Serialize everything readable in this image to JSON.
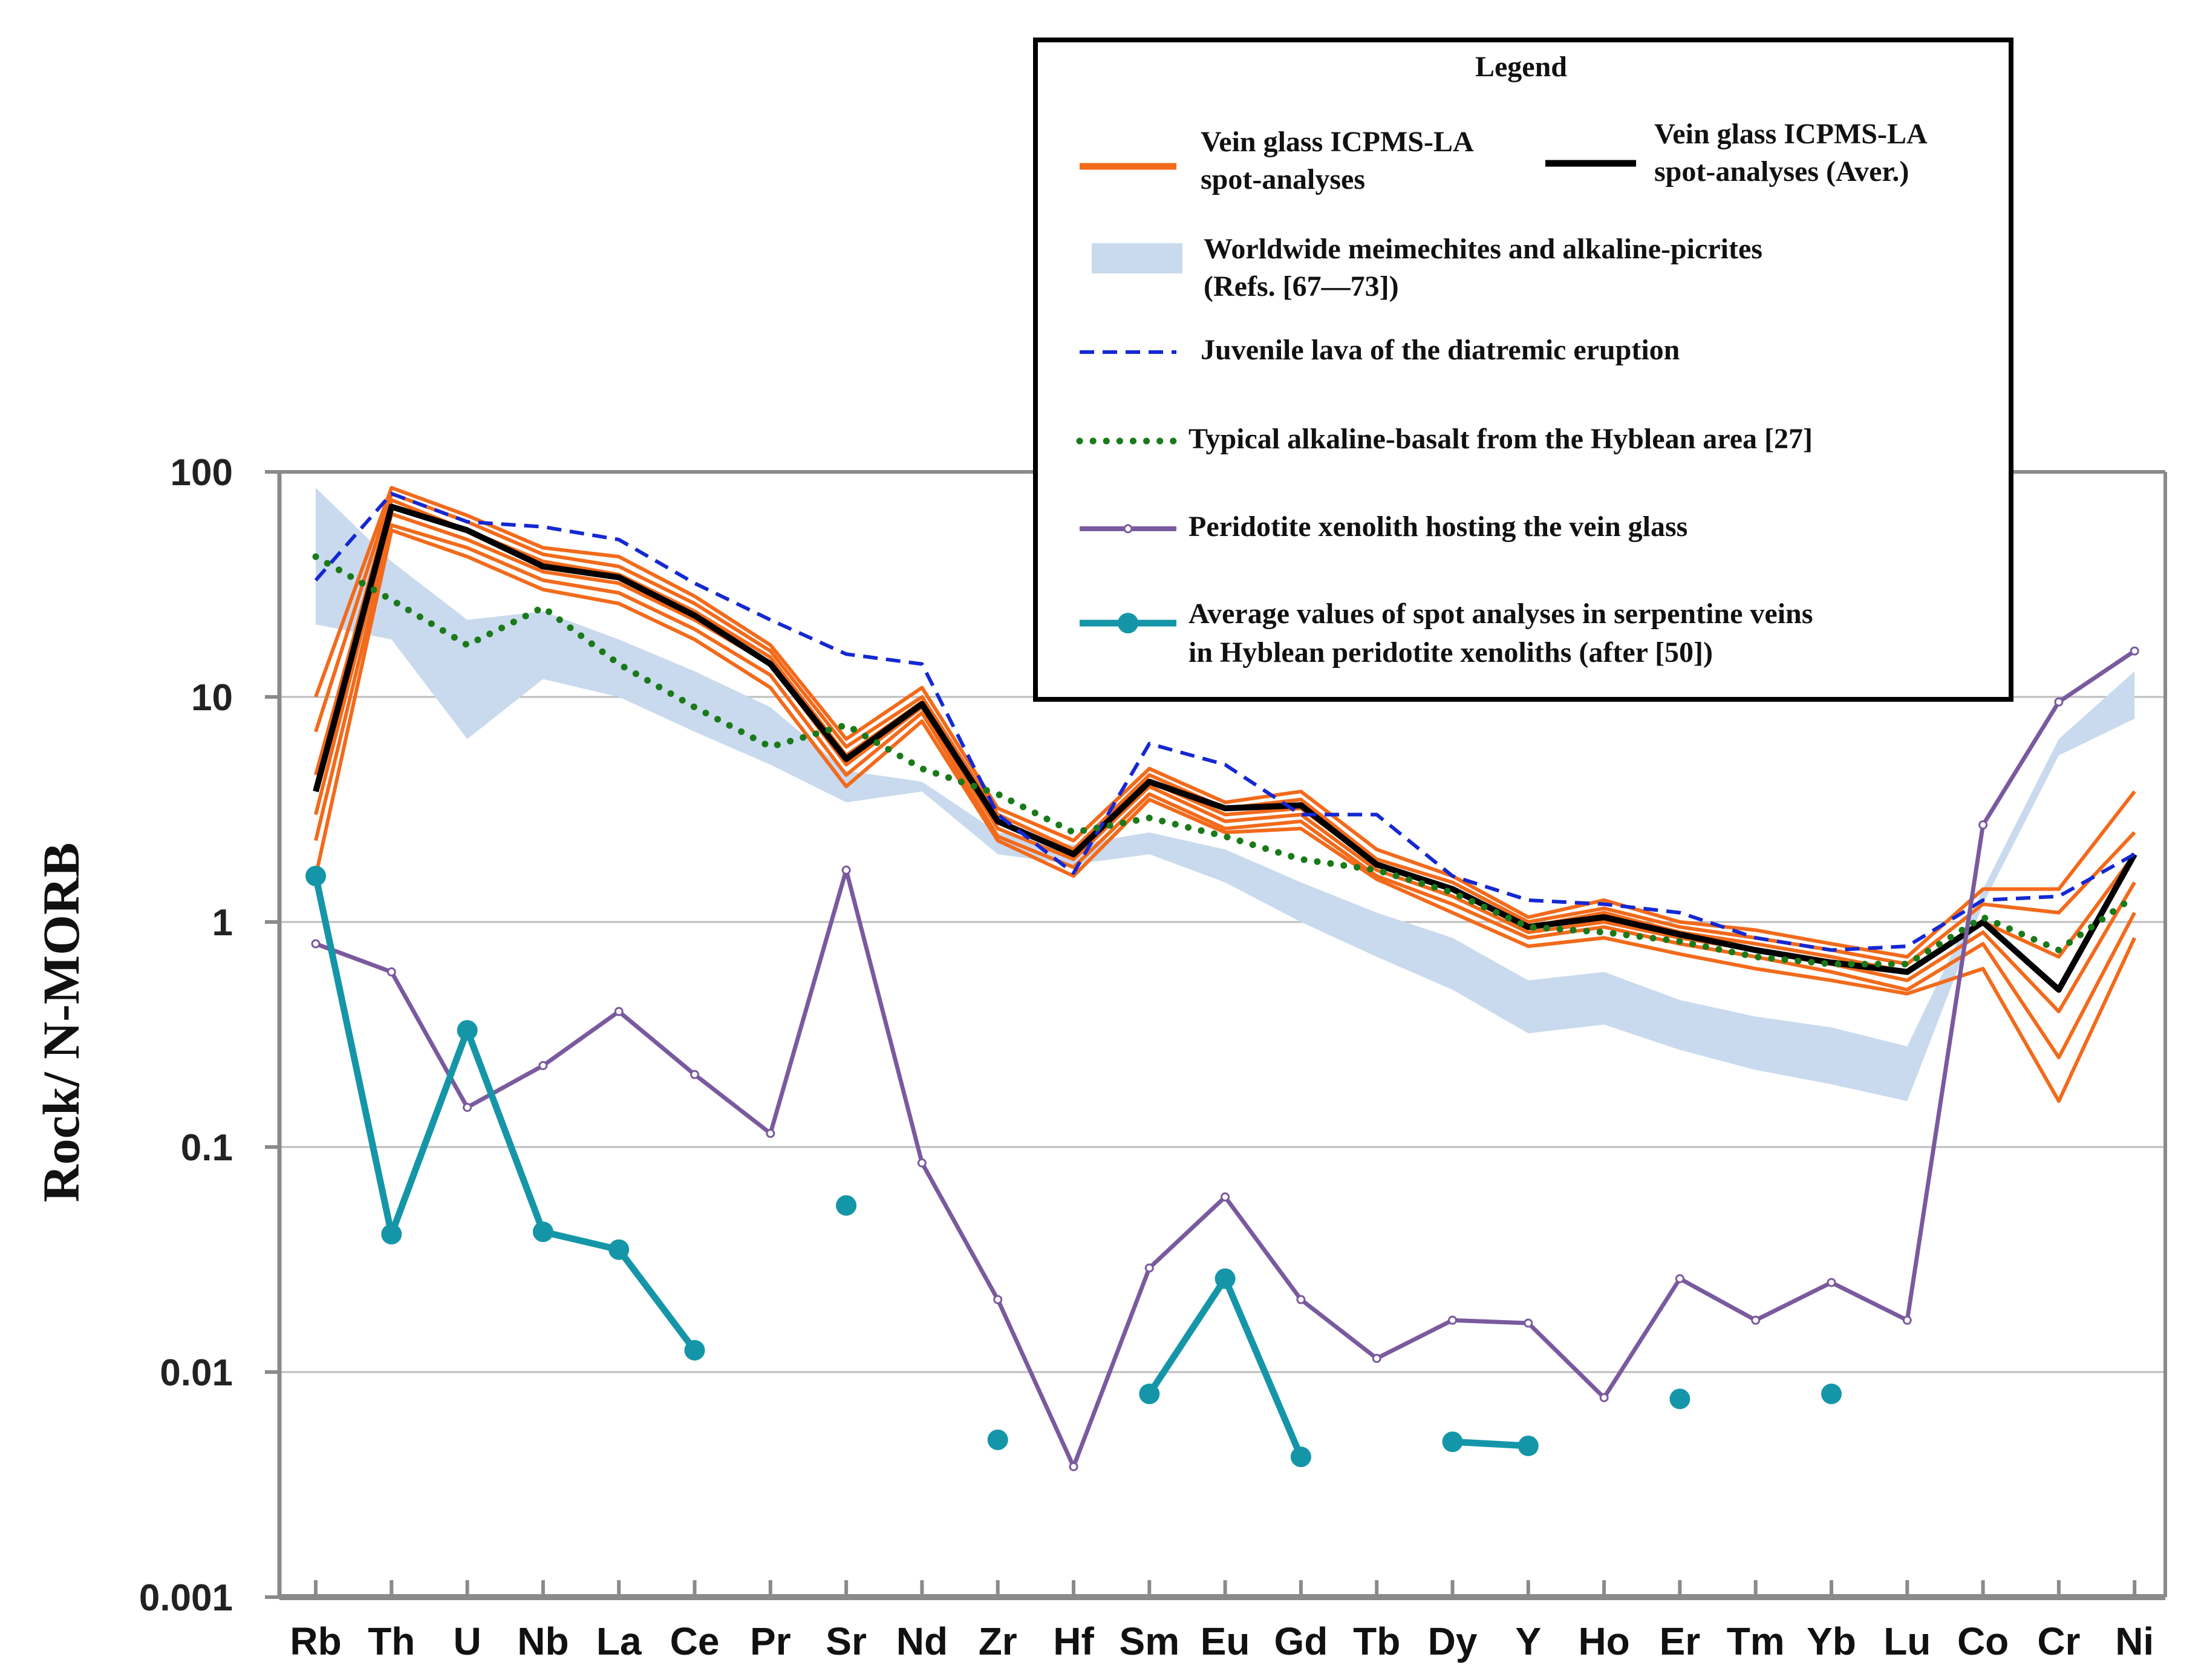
{
  "chart_data": {
    "type": "line",
    "yscale": "log",
    "ylabel": "Rock/ N-MORB",
    "xlabel": "",
    "ylim": [
      0.001,
      100
    ],
    "yticks": [
      "100",
      "10",
      "1",
      "0.1",
      "0.01",
      "0.001"
    ],
    "grid": true,
    "categories": [
      "Rb",
      "Th",
      "U",
      "Nb",
      "La",
      "Ce",
      "Pr",
      "Sr",
      "Nd",
      "Zr",
      "Hf",
      "Sm",
      "Eu",
      "Gd",
      "Tb",
      "Dy",
      "Y",
      "Ho",
      "Er",
      "Tm",
      "Yb",
      "Lu",
      "Co",
      "Cr",
      "Ni"
    ],
    "legend": {
      "title": "Legend",
      "placement": "top-right",
      "entries": [
        {
          "key": "spots",
          "lines": [
            "Vein glass ICPMS-LA",
            "spot-analyses"
          ]
        },
        {
          "key": "avg",
          "lines": [
            "Vein glass ICPMS-LA",
            "spot-analyses (Aver.)"
          ]
        },
        {
          "key": "band",
          "lines": [
            "Worldwide meimechites and alkaline-picrites",
            "(Refs. [67—73])"
          ]
        },
        {
          "key": "juvenile",
          "lines": [
            "Juvenile lava of the diatremic eruption"
          ]
        },
        {
          "key": "hyblean",
          "lines": [
            "Typical alkaline-basalt from the Hyblean area [27]"
          ]
        },
        {
          "key": "xenolith",
          "lines": [
            "Peridotite xenolith hosting the vein glass"
          ]
        },
        {
          "key": "serpentine",
          "lines": [
            "Average values of spot analyses in serpentine veins",
            "in Hyblean peridotite xenoliths (after [50])"
          ]
        }
      ]
    },
    "colors": {
      "spots": "#f26a1b",
      "avg": "#000000",
      "band": "#c9daee",
      "juvenile": "#1428d2",
      "hyblean": "#1a7a1a",
      "xenolith": "#7a5a9e",
      "serpentine": "#1596a8",
      "grid": "#bdbdbd",
      "frame": "#8a8a8a"
    },
    "band": {
      "name": "Worldwide meimechites and alkaline-picrites",
      "upper": [
        85,
        40,
        22,
        24,
        18,
        13,
        9,
        4.7,
        4.2,
        2.5,
        2.2,
        2.5,
        2.1,
        1.5,
        1.1,
        0.85,
        0.55,
        0.6,
        0.45,
        0.38,
        0.34,
        0.28,
        1.4,
        6.5,
        13
      ],
      "lower": [
        21,
        18,
        6.5,
        12,
        10,
        7,
        5,
        3.4,
        3.8,
        2.0,
        1.8,
        2.0,
        1.5,
        1.0,
        0.7,
        0.5,
        0.32,
        0.35,
        0.27,
        0.22,
        0.19,
        0.16,
        1.2,
        5.5,
        8
      ]
    },
    "series": [
      {
        "name": "Vein glass ICPMS-LA spot-analyses",
        "key": "spots",
        "values": [
          10,
          85,
          64,
          46,
          42,
          28,
          17,
          6.5,
          11,
          3.2,
          2.3,
          4.8,
          3.4,
          3.8,
          2.1,
          1.6,
          1.05,
          1.25,
          1.0,
          0.92,
          0.8,
          0.7,
          1.4,
          1.4,
          3.8
        ]
      },
      {
        "name": "Vein glass ICPMS-LA spot-analyses",
        "key": "spots",
        "values": [
          7,
          80,
          60,
          43,
          38,
          26,
          16,
          6.0,
          10,
          3.0,
          2.1,
          4.5,
          3.2,
          3.5,
          1.9,
          1.5,
          1.0,
          1.15,
          0.95,
          0.85,
          0.75,
          0.65,
          1.2,
          1.1,
          2.5
        ]
      },
      {
        "name": "Vein glass ICPMS-LA spot-analyses",
        "key": "spots",
        "values": [
          4.5,
          75,
          55,
          40,
          35,
          24,
          15,
          5.5,
          9.5,
          2.8,
          2.0,
          4.2,
          3.0,
          3.2,
          1.8,
          1.4,
          0.95,
          1.1,
          0.9,
          0.8,
          0.7,
          0.6,
          1.0,
          0.7,
          2.0
        ]
      },
      {
        "name": "Vein glass ICPMS-LA spot-analyses",
        "key": "spots",
        "values": [
          3,
          65,
          50,
          36,
          32,
          22,
          14,
          5.0,
          9.0,
          2.6,
          1.9,
          4.0,
          2.8,
          3.0,
          1.7,
          1.3,
          0.9,
          1.0,
          0.85,
          0.75,
          0.65,
          0.55,
          0.9,
          0.4,
          1.5
        ]
      },
      {
        "name": "Vein glass ICPMS-LA spot-analyses",
        "key": "spots",
        "values": [
          2.3,
          58,
          46,
          33,
          29,
          20,
          12.5,
          4.5,
          8.5,
          2.4,
          1.75,
          3.7,
          2.6,
          2.8,
          1.6,
          1.2,
          0.85,
          0.95,
          0.8,
          0.7,
          0.6,
          0.5,
          0.8,
          0.25,
          1.1
        ]
      },
      {
        "name": "Vein glass ICPMS-LA spot-analyses",
        "key": "spots",
        "values": [
          1.6,
          55,
          42,
          30,
          26,
          18,
          11,
          4.0,
          7.8,
          2.3,
          1.6,
          3.5,
          2.5,
          2.6,
          1.55,
          1.1,
          0.78,
          0.85,
          0.72,
          0.62,
          0.55,
          0.48,
          0.62,
          0.16,
          0.85
        ]
      },
      {
        "name": "Vein glass ICPMS-LA spot-analyses (Aver.)",
        "key": "avg",
        "values": [
          3.8,
          70,
          55,
          38,
          34,
          23,
          14,
          5.3,
          9.3,
          2.8,
          2.0,
          4.2,
          3.2,
          3.3,
          1.8,
          1.4,
          0.95,
          1.05,
          0.88,
          0.75,
          0.66,
          0.6,
          1.0,
          0.5,
          2.0
        ]
      },
      {
        "name": "Juvenile lava of the diatremic eruption",
        "key": "juvenile",
        "values": [
          33,
          80,
          60,
          57,
          50,
          32,
          22,
          15.5,
          14,
          3.0,
          1.65,
          6.2,
          5.0,
          3.0,
          3.0,
          1.6,
          1.25,
          1.2,
          1.1,
          0.85,
          0.75,
          0.78,
          1.25,
          1.3,
          2.0
        ]
      },
      {
        "name": "Typical alkaline-basalt from the Hyblean area [27]",
        "key": "hyblean",
        "values": [
          42,
          27,
          17,
          25,
          14,
          9,
          6,
          7.5,
          4.8,
          3.7,
          2.5,
          2.9,
          2.4,
          1.9,
          1.7,
          1.35,
          0.95,
          0.9,
          0.82,
          0.7,
          0.65,
          0.65,
          1.05,
          0.75,
          1.3
        ]
      },
      {
        "name": "Peridotite xenolith hosting the vein glass",
        "key": "xenolith",
        "values": [
          0.8,
          0.6,
          0.15,
          0.23,
          0.4,
          0.21,
          0.115,
          1.7,
          0.085,
          0.021,
          0.0038,
          0.029,
          0.06,
          0.021,
          0.0115,
          0.017,
          0.0165,
          0.0077,
          0.026,
          0.017,
          0.025,
          0.017,
          2.7,
          9.5,
          16
        ]
      },
      {
        "name": "Average values of spot analyses in serpentine veins in Hyblean peridotite xenoliths (after [50])",
        "key": "serpentine",
        "values": [
          1.6,
          0.041,
          0.33,
          0.042,
          0.035,
          0.0125,
          null,
          0.055,
          null,
          0.005,
          null,
          0.008,
          0.026,
          0.0042,
          null,
          0.0049,
          0.0047,
          null,
          0.0076,
          null,
          0.008,
          null,
          null,
          null,
          null
        ]
      }
    ]
  }
}
